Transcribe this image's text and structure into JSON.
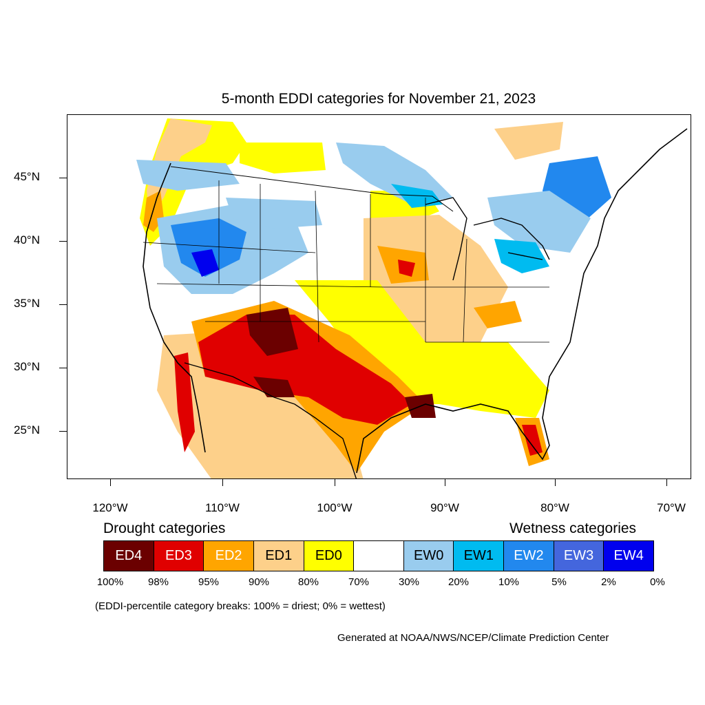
{
  "title": "5-month EDDI categories for November 21, 2023",
  "map": {
    "y_axis_labels": [
      "45°N",
      "40°N",
      "35°N",
      "30°N",
      "25°N"
    ],
    "x_axis_labels": [
      "120°W",
      "110°W",
      "100°W",
      "90°W",
      "80°W",
      "70°W"
    ]
  },
  "legend": {
    "drought_heading": "Drought categories",
    "wetness_heading": "Wetness categories",
    "categories": [
      {
        "label": "ED4",
        "color": "#6b0000",
        "text_color": "#ffffff"
      },
      {
        "label": "ED3",
        "color": "#e00000",
        "text_color": "#ffffff"
      },
      {
        "label": "ED2",
        "color": "#ffa500",
        "text_color": "#ffffff"
      },
      {
        "label": "ED1",
        "color": "#fdd08a",
        "text_color": "#000000"
      },
      {
        "label": "ED0",
        "color": "#ffff00",
        "text_color": "#000000"
      },
      {
        "label": "",
        "color": "#ffffff",
        "text_color": "#000000"
      },
      {
        "label": "EW0",
        "color": "#99ccee",
        "text_color": "#000000"
      },
      {
        "label": "EW1",
        "color": "#00bbf0",
        "text_color": "#000000"
      },
      {
        "label": "EW2",
        "color": "#2288ee",
        "text_color": "#ffffff"
      },
      {
        "label": "EW3",
        "color": "#4466dd",
        "text_color": "#ffffff"
      },
      {
        "label": "EW4",
        "color": "#0000ee",
        "text_color": "#ffffff"
      }
    ],
    "percentiles": [
      "100%",
      "98%",
      "95%",
      "90%",
      "80%",
      "70%",
      "30%",
      "20%",
      "10%",
      "5%",
      "2%",
      "0%"
    ],
    "note": "(EDDI-percentile category breaks: 100% = driest; 0% = wettest)"
  },
  "credit": "Generated at NOAA/NWS/NCEP/Climate Prediction Center"
}
